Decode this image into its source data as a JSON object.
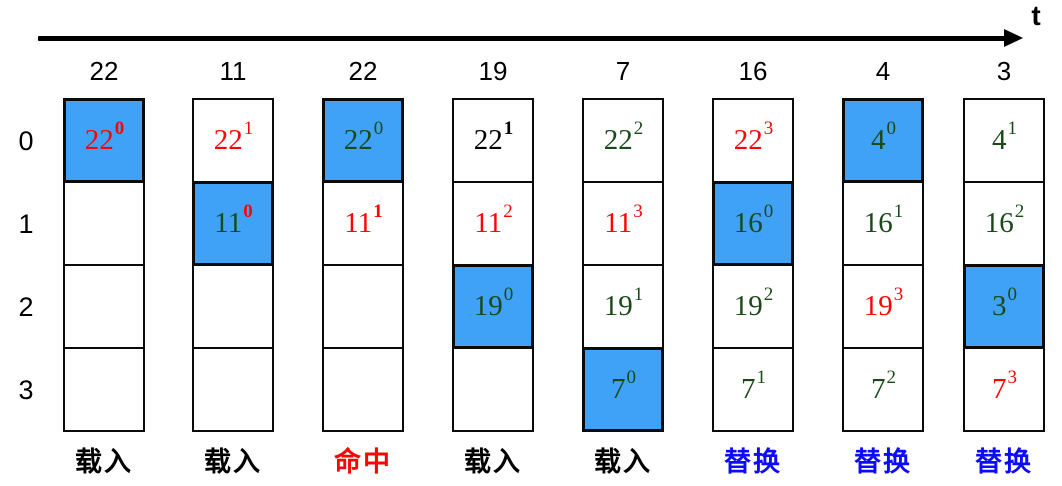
{
  "timeline": {
    "label": "t"
  },
  "row_labels": [
    "0",
    "1",
    "2",
    "3"
  ],
  "colors": {
    "highlight_fill": "#3FA2F7",
    "red": "#FB0404",
    "green": "#1A4A1A",
    "black": "#000000",
    "action_blue": "#0B0BFE",
    "action_red": "#FB0404",
    "action_black": "#000000"
  },
  "columns": [
    {
      "header": "22",
      "action": "载入",
      "action_color": "black",
      "cells": [
        {
          "value": "22",
          "sup": "0",
          "color": "red",
          "sup_color": "red",
          "sup_bold": true,
          "highlight": true
        },
        null,
        null,
        null
      ]
    },
    {
      "header": "11",
      "action": "载入",
      "action_color": "black",
      "cells": [
        {
          "value": "22",
          "sup": "1",
          "color": "red",
          "sup_color": "red",
          "sup_bold": false,
          "highlight": false
        },
        {
          "value": "11",
          "sup": "0",
          "color": "green",
          "sup_color": "red",
          "sup_bold": true,
          "highlight": true
        },
        null,
        null
      ]
    },
    {
      "header": "22",
      "action": "命中",
      "action_color": "red",
      "cells": [
        {
          "value": "22",
          "sup": "0",
          "color": "green",
          "sup_color": "green",
          "sup_bold": false,
          "highlight": true
        },
        {
          "value": "11",
          "sup": "1",
          "color": "red",
          "sup_color": "red",
          "sup_bold": true,
          "highlight": false
        },
        null,
        null
      ]
    },
    {
      "header": "19",
      "action": "载入",
      "action_color": "black",
      "cells": [
        {
          "value": "22",
          "sup": "1",
          "color": "black",
          "sup_color": "black",
          "sup_bold": true,
          "highlight": false
        },
        {
          "value": "11",
          "sup": "2",
          "color": "red",
          "sup_color": "red",
          "sup_bold": false,
          "highlight": false
        },
        {
          "value": "19",
          "sup": "0",
          "color": "green",
          "sup_color": "green",
          "sup_bold": false,
          "highlight": true
        },
        null
      ]
    },
    {
      "header": "7",
      "action": "载入",
      "action_color": "black",
      "cells": [
        {
          "value": "22",
          "sup": "2",
          "color": "green",
          "sup_color": "green",
          "sup_bold": false,
          "highlight": false
        },
        {
          "value": "11",
          "sup": "3",
          "color": "red",
          "sup_color": "red",
          "sup_bold": false,
          "highlight": false
        },
        {
          "value": "19",
          "sup": "1",
          "color": "green",
          "sup_color": "green",
          "sup_bold": false,
          "highlight": false
        },
        {
          "value": "7",
          "sup": "0",
          "color": "green",
          "sup_color": "green",
          "sup_bold": false,
          "highlight": true
        }
      ]
    },
    {
      "header": "16",
      "action": "替换",
      "action_color": "blue",
      "cells": [
        {
          "value": "22",
          "sup": "3",
          "color": "red",
          "sup_color": "red",
          "sup_bold": false,
          "highlight": false
        },
        {
          "value": "16",
          "sup": "0",
          "color": "green",
          "sup_color": "green",
          "sup_bold": false,
          "highlight": true
        },
        {
          "value": "19",
          "sup": "2",
          "color": "green",
          "sup_color": "green",
          "sup_bold": false,
          "highlight": false
        },
        {
          "value": "7",
          "sup": "1",
          "color": "green",
          "sup_color": "green",
          "sup_bold": false,
          "highlight": false
        }
      ]
    },
    {
      "header": "4",
      "action": "替换",
      "action_color": "blue",
      "cells": [
        {
          "value": "4",
          "sup": "0",
          "color": "green",
          "sup_color": "green",
          "sup_bold": false,
          "highlight": true
        },
        {
          "value": "16",
          "sup": "1",
          "color": "green",
          "sup_color": "green",
          "sup_bold": false,
          "highlight": false
        },
        {
          "value": "19",
          "sup": "3",
          "color": "red",
          "sup_color": "red",
          "sup_bold": false,
          "highlight": false
        },
        {
          "value": "7",
          "sup": "2",
          "color": "green",
          "sup_color": "green",
          "sup_bold": false,
          "highlight": false
        }
      ]
    },
    {
      "header": "3",
      "action": "替换",
      "action_color": "blue",
      "cells": [
        {
          "value": "4",
          "sup": "1",
          "color": "green",
          "sup_color": "green",
          "sup_bold": false,
          "highlight": false
        },
        {
          "value": "16",
          "sup": "2",
          "color": "green",
          "sup_color": "green",
          "sup_bold": false,
          "highlight": false
        },
        {
          "value": "3",
          "sup": "0",
          "color": "green",
          "sup_color": "green",
          "sup_bold": false,
          "highlight": true
        },
        {
          "value": "7",
          "sup": "3",
          "color": "red",
          "sup_color": "red",
          "sup_bold": false,
          "highlight": false
        }
      ]
    }
  ],
  "layout": {
    "column_lefts": [
      63,
      192,
      322,
      452,
      582,
      712,
      842,
      963
    ],
    "row_label_tops": [
      124,
      207,
      290,
      373
    ]
  }
}
